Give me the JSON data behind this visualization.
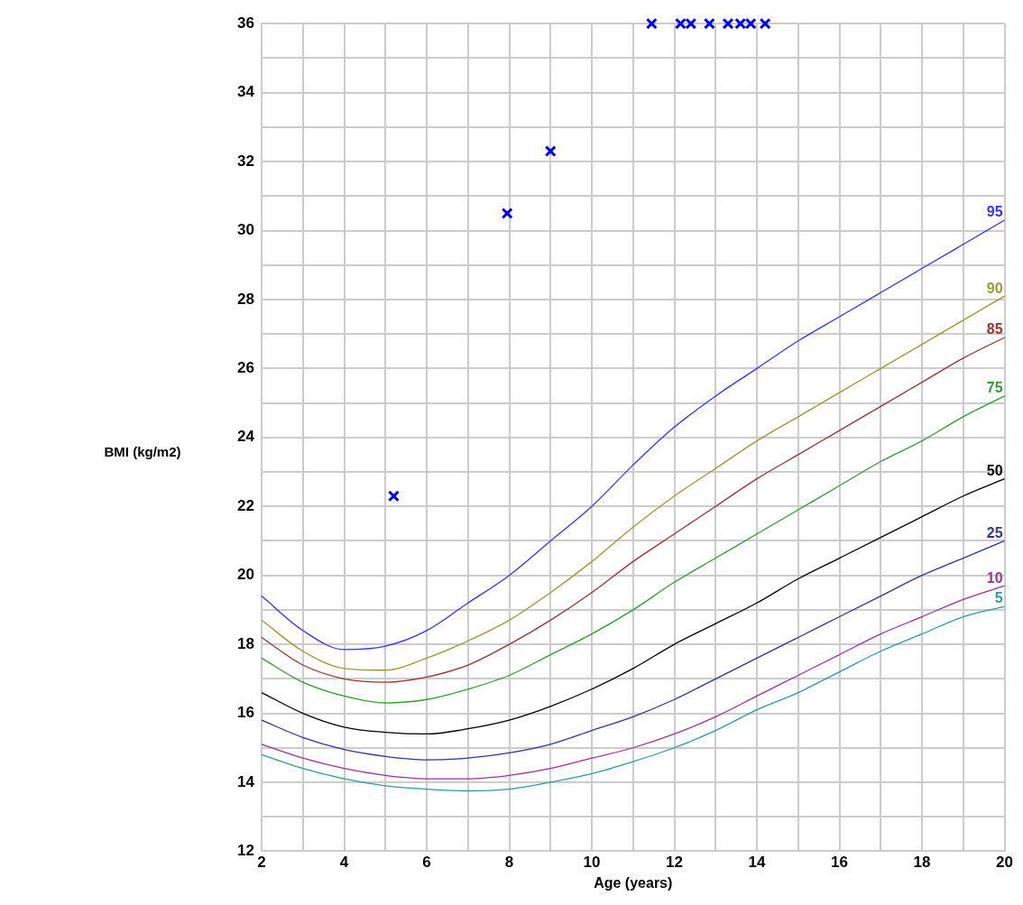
{
  "chart_data": {
    "type": "line",
    "xlabel": "Age (years)",
    "ylabel": "BMI (kg/m2)",
    "x": [
      2,
      3,
      4,
      5,
      6,
      7,
      8,
      9,
      10,
      11,
      12,
      13,
      14,
      15,
      16,
      17,
      18,
      19,
      20
    ],
    "xlim": [
      2,
      20
    ],
    "ylim": [
      12,
      36
    ],
    "xticks": [
      2,
      {
        "value": 3,
        "label": null
      },
      4,
      {
        "value": 5,
        "label": null
      },
      6,
      {
        "value": 7,
        "label": null
      },
      8,
      {
        "value": 9,
        "label": null
      },
      10,
      {
        "value": 11,
        "label": null
      },
      12,
      {
        "value": 13,
        "label": null
      },
      14,
      {
        "value": 15,
        "label": null
      },
      16,
      {
        "value": 17,
        "label": null
      },
      18,
      {
        "value": 19,
        "label": null
      },
      20
    ],
    "yticks": [
      12,
      {
        "value": 13,
        "label": null
      },
      14,
      {
        "value": 15,
        "label": null
      },
      16,
      {
        "value": 17,
        "label": null
      },
      18,
      {
        "value": 19,
        "label": null
      },
      20,
      {
        "value": 21,
        "label": null
      },
      22,
      {
        "value": 23,
        "label": null
      },
      24,
      {
        "value": 25,
        "label": null
      },
      26,
      {
        "value": 27,
        "label": null
      },
      28,
      {
        "value": 29,
        "label": null
      },
      30,
      {
        "value": 31,
        "label": null
      },
      32,
      {
        "value": 33,
        "label": null
      },
      34,
      {
        "value": 35,
        "label": null
      },
      36
    ],
    "grid": true,
    "legend": false,
    "marker": "none",
    "line_style": "solid",
    "series": [
      {
        "name": "95",
        "color": "#3333ff",
        "values": [
          19.4,
          18.4,
          17.85,
          17.95,
          18.4,
          19.2,
          20.0,
          21.0,
          22.0,
          23.2,
          24.3,
          25.2,
          26.0,
          26.8,
          27.5,
          28.2,
          28.9,
          29.6,
          30.3
        ]
      },
      {
        "name": "90",
        "color": "#999933",
        "values": [
          18.7,
          17.8,
          17.3,
          17.25,
          17.6,
          18.1,
          18.7,
          19.5,
          20.4,
          21.4,
          22.3,
          23.1,
          23.9,
          24.6,
          25.3,
          26.0,
          26.7,
          27.4,
          28.1
        ]
      },
      {
        "name": "85",
        "color": "#993333",
        "values": [
          18.2,
          17.4,
          17.0,
          16.9,
          17.05,
          17.4,
          18.0,
          18.7,
          19.5,
          20.4,
          21.2,
          22.0,
          22.8,
          23.5,
          24.2,
          24.9,
          25.6,
          26.3,
          26.9
        ]
      },
      {
        "name": "75",
        "color": "#339933",
        "values": [
          17.6,
          16.9,
          16.5,
          16.3,
          16.4,
          16.7,
          17.1,
          17.7,
          18.3,
          19.0,
          19.8,
          20.5,
          21.2,
          21.9,
          22.6,
          23.3,
          23.9,
          24.6,
          25.2
        ]
      },
      {
        "name": "50",
        "color": "#000000",
        "values": [
          16.6,
          16.0,
          15.6,
          15.45,
          15.4,
          15.55,
          15.8,
          16.2,
          16.7,
          17.3,
          18.0,
          18.6,
          19.2,
          19.9,
          20.5,
          21.1,
          21.7,
          22.3,
          22.8
        ]
      },
      {
        "name": "25",
        "color": "#333399",
        "values": [
          15.8,
          15.3,
          14.95,
          14.75,
          14.65,
          14.7,
          14.85,
          15.1,
          15.5,
          15.9,
          16.4,
          17.0,
          17.6,
          18.2,
          18.8,
          19.4,
          20.0,
          20.5,
          21.0
        ]
      },
      {
        "name": "10",
        "color": "#993399",
        "values": [
          15.1,
          14.7,
          14.4,
          14.2,
          14.1,
          14.1,
          14.2,
          14.4,
          14.7,
          15.0,
          15.4,
          15.9,
          16.5,
          17.1,
          17.7,
          18.3,
          18.8,
          19.3,
          19.7
        ]
      },
      {
        "name": "5",
        "color": "#339999",
        "values": [
          14.8,
          14.4,
          14.1,
          13.9,
          13.8,
          13.75,
          13.8,
          14.0,
          14.25,
          14.6,
          15.0,
          15.5,
          16.1,
          16.6,
          17.2,
          17.8,
          18.3,
          18.8,
          19.1
        ]
      },
      {
        "type": "scatter",
        "marker": "cross",
        "color": "#0000ff",
        "x": [
          5.2,
          7.95,
          9.0,
          11.45,
          12.15,
          12.4,
          12.85,
          13.3,
          13.6,
          13.85,
          14.2
        ],
        "values": [
          22.3,
          30.5,
          32.3,
          36,
          36,
          36,
          36,
          36,
          36,
          36,
          36
        ]
      }
    ]
  }
}
